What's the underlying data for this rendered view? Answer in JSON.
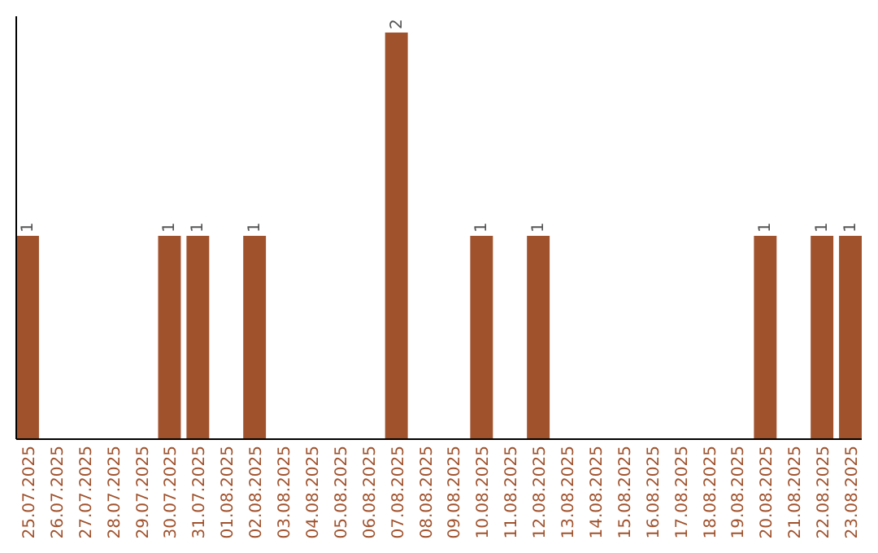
{
  "chart_data": {
    "type": "bar",
    "categories": [
      "25.07.2025",
      "26.07.2025",
      "27.07.2025",
      "28.07.2025",
      "29.07.2025",
      "30.07.2025",
      "31.07.2025",
      "01.08.2025",
      "02.08.2025",
      "03.08.2025",
      "04.08.2025",
      "05.08.2025",
      "06.08.2025",
      "07.08.2025",
      "08.08.2025",
      "09.08.2025",
      "10.08.2025",
      "11.08.2025",
      "12.08.2025",
      "13.08.2025",
      "14.08.2025",
      "15.08.2025",
      "16.08.2025",
      "17.08.2025",
      "18.08.2025",
      "19.08.2025",
      "20.08.2025",
      "21.08.2025",
      "22.08.2025",
      "23.08.2025"
    ],
    "values": [
      1,
      0,
      0,
      0,
      0,
      1,
      1,
      0,
      1,
      0,
      0,
      0,
      0,
      2,
      0,
      0,
      1,
      0,
      1,
      0,
      0,
      0,
      0,
      0,
      0,
      0,
      1,
      0,
      1,
      1
    ],
    "value_labels": [
      "1",
      null,
      null,
      null,
      null,
      "1",
      "1",
      null,
      "1",
      null,
      null,
      null,
      null,
      "2",
      null,
      null,
      "1",
      null,
      "1",
      null,
      null,
      null,
      null,
      null,
      null,
      null,
      "1",
      null,
      "1",
      "1"
    ],
    "color": "#a0522d"
  }
}
